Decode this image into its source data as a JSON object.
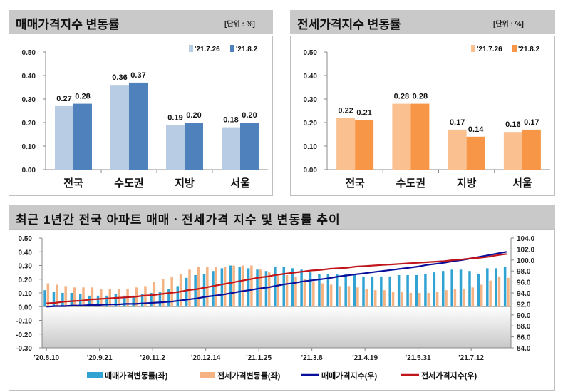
{
  "chart_data": [
    {
      "type": "bar",
      "title": "매매가격지수 변동률",
      "unit": "[단위 : %]",
      "categories": [
        "전국",
        "수도권",
        "지방",
        "서울"
      ],
      "series": [
        {
          "name": "'21.7.26",
          "values": [
            0.27,
            0.36,
            0.19,
            0.18
          ],
          "color": "#b8cce4"
        },
        {
          "name": "'21.8.2",
          "values": [
            0.28,
            0.37,
            0.2,
            0.2
          ],
          "color": "#4f81bd"
        }
      ],
      "ylim": [
        0,
        0.5
      ],
      "yticks": [
        "0.50",
        "0.40",
        "0.30",
        "0.20",
        "0.10",
        "0.00"
      ],
      "legend": "top-right",
      "data_labels": true
    },
    {
      "type": "bar",
      "title": "전세가격지수 변동률",
      "unit": "[단위 : %]",
      "categories": [
        "전국",
        "수도권",
        "지방",
        "서울"
      ],
      "series": [
        {
          "name": "'21.7.26",
          "values": [
            0.22,
            0.28,
            0.17,
            0.16
          ],
          "color": "#fac090"
        },
        {
          "name": "'21.8.2",
          "values": [
            0.21,
            0.28,
            0.14,
            0.17
          ],
          "color": "#f79646"
        }
      ],
      "ylim": [
        0,
        0.5
      ],
      "yticks": [
        "0.50",
        "0.40",
        "0.30",
        "0.20",
        "0.10",
        "0.00"
      ],
      "legend": "top-right",
      "data_labels": true
    },
    {
      "type": "bar+line",
      "title": "최근 1년간 전국 아파트 매매ㆍ전세가격 지수 및 변동률 추이",
      "x_tick_labels": [
        "'20.8.10",
        "'20.9.21",
        "'20.11.2",
        "'20.12.14",
        "'21.1.25",
        "'21.3.8",
        "'21.4.19",
        "'21.5.31",
        "'21.7.12"
      ],
      "y_left_ticks": [
        "0.50",
        "0.40",
        "0.30",
        "0.20",
        "0.10",
        "0.00",
        "-0.10",
        "-0.20",
        "-0.30"
      ],
      "y_left_lim": [
        -0.3,
        0.5
      ],
      "y_right_ticks": [
        "104.0",
        "102.0",
        "100.0",
        "98.0",
        "96.0",
        "94.0",
        "92.0",
        "90.0",
        "88.0",
        "86.0",
        "84.0"
      ],
      "y_right_lim": [
        84.0,
        104.0
      ],
      "series": [
        {
          "name": "매매가격변동률(좌)",
          "kind": "bar",
          "axis": "left",
          "color": "#31a3d3",
          "values": [
            0.12,
            0.11,
            0.1,
            0.1,
            0.09,
            0.08,
            0.08,
            0.08,
            0.09,
            0.08,
            0.08,
            0.09,
            0.1,
            0.11,
            0.13,
            0.15,
            0.21,
            0.23,
            0.24,
            0.26,
            0.28,
            0.3,
            0.29,
            0.28,
            0.27,
            0.26,
            0.29,
            0.29,
            0.28,
            0.27,
            0.25,
            0.24,
            0.24,
            0.24,
            0.24,
            0.24,
            0.22,
            0.22,
            0.22,
            0.22,
            0.23,
            0.23,
            0.23,
            0.24,
            0.25,
            0.26,
            0.27,
            0.27,
            0.26,
            0.24,
            0.28,
            0.28,
            0.29
          ]
        },
        {
          "name": "전세가격변동률(좌)",
          "kind": "bar",
          "axis": "left",
          "color": "#f5b383",
          "values": [
            0.17,
            0.16,
            0.15,
            0.14,
            0.14,
            0.14,
            0.13,
            0.13,
            0.13,
            0.13,
            0.14,
            0.15,
            0.18,
            0.2,
            0.22,
            0.24,
            0.27,
            0.29,
            0.29,
            0.29,
            0.29,
            0.3,
            0.3,
            0.3,
            0.27,
            0.25,
            0.24,
            0.23,
            0.22,
            0.2,
            0.18,
            0.17,
            0.16,
            0.15,
            0.15,
            0.14,
            0.13,
            0.12,
            0.12,
            0.11,
            0.11,
            0.1,
            0.1,
            0.1,
            0.11,
            0.12,
            0.13,
            0.13,
            0.14,
            0.16,
            0.19,
            0.22,
            0.21
          ]
        },
        {
          "name": "매매가격지수(우)",
          "kind": "line",
          "axis": "right",
          "color": "#0a0f9b",
          "values": [
            91.5,
            91.6,
            91.6,
            91.7,
            91.7,
            91.8,
            91.8,
            91.9,
            91.9,
            92.0,
            92.0,
            92.1,
            92.2,
            92.3,
            92.4,
            92.6,
            92.8,
            93.0,
            93.3,
            93.5,
            93.7,
            94.0,
            94.3,
            94.5,
            94.8,
            95.0,
            95.3,
            95.6,
            95.8,
            96.1,
            96.3,
            96.5,
            96.7,
            97.0,
            97.2,
            97.4,
            97.6,
            97.8,
            98.0,
            98.2,
            98.4,
            98.6,
            98.8,
            99.1,
            99.3,
            99.5,
            99.8,
            100.0,
            100.3,
            100.6,
            100.9,
            101.2,
            101.5
          ]
        },
        {
          "name": "전세가격지수(우)",
          "kind": "line",
          "axis": "right",
          "color": "#c0161b",
          "values": [
            92.1,
            92.2,
            92.4,
            92.5,
            92.6,
            92.8,
            92.9,
            93.0,
            93.1,
            93.2,
            93.3,
            93.5,
            93.6,
            93.8,
            94.0,
            94.2,
            94.5,
            94.7,
            95.0,
            95.3,
            95.6,
            95.9,
            96.2,
            96.5,
            96.8,
            97.0,
            97.3,
            97.5,
            97.7,
            97.9,
            98.1,
            98.2,
            98.4,
            98.5,
            98.6,
            98.8,
            98.9,
            99.0,
            99.1,
            99.2,
            99.3,
            99.4,
            99.5,
            99.6,
            99.7,
            99.8,
            100.0,
            100.1,
            100.3,
            100.4,
            100.6,
            100.9,
            101.1
          ]
        }
      ],
      "legend": "bottom"
    }
  ]
}
